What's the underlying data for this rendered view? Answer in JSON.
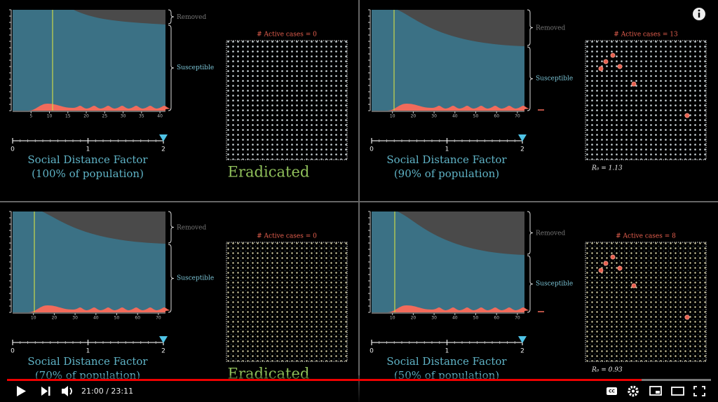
{
  "panels": [
    {
      "xticks": [
        5,
        10,
        15,
        20,
        25,
        30,
        35,
        40
      ],
      "xlim": [
        0,
        41.5
      ],
      "removed_label": "Removed",
      "susceptible_label": "Susceptible",
      "slider_ticks": [
        0,
        1,
        2
      ],
      "slider_label": "Social Distance Factor",
      "population_label": "(100% of population)",
      "active_cases": "# Active cases = 0",
      "status": "Eradicated"
    },
    {
      "xticks": [
        10,
        20,
        30,
        40,
        50,
        60,
        70
      ],
      "xlim": [
        0,
        73.4
      ],
      "removed_label": "Removed",
      "susceptible_label": "Susceptible",
      "slider_ticks": [
        0,
        1,
        2
      ],
      "slider_label": "Social Distance Factor",
      "population_label": "(90% of population)",
      "active_cases": "# Active cases = 13",
      "r0": "R₀ = 1.13"
    },
    {
      "xticks": [
        10,
        20,
        30,
        40,
        50,
        60,
        70
      ],
      "xlim": [
        0,
        73.4
      ],
      "removed_label": "Removed",
      "susceptible_label": "Susceptible",
      "slider_ticks": [
        0,
        1,
        2
      ],
      "slider_label": "Social Distance Factor",
      "population_label": "(70% of population)",
      "active_cases": "# Active cases = 0",
      "status": "Eradicated"
    },
    {
      "xticks": [
        10,
        20,
        30,
        40,
        50,
        60,
        70
      ],
      "xlim": [
        0,
        73.4
      ],
      "removed_label": "Removed",
      "susceptible_label": "Susceptible",
      "slider_ticks": [
        0,
        1,
        2
      ],
      "slider_label": "Social Distance Factor",
      "population_label": "(50% of population)",
      "active_cases": "# Active cases = 8",
      "r0": "R₀ = 0.93"
    }
  ],
  "player": {
    "time": "21:00 / 23:11"
  }
}
